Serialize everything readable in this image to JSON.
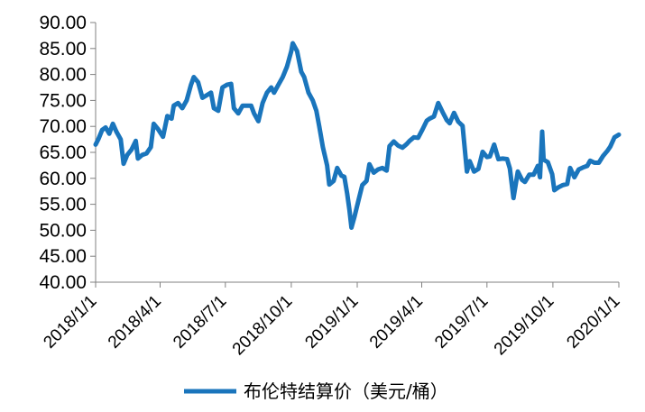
{
  "chart_data": {
    "type": "line",
    "title": "",
    "xlabel": "",
    "ylabel": "",
    "ylim": [
      40,
      90
    ],
    "y_ticks": [
      "40.00",
      "45.00",
      "50.00",
      "55.00",
      "60.00",
      "65.00",
      "70.00",
      "75.00",
      "80.00",
      "85.00",
      "90.00"
    ],
    "x_ticks": [
      "2018/1/1",
      "2018/4/1",
      "2018/7/1",
      "2018/10/1",
      "2019/1/1",
      "2019/4/1",
      "2019/7/1",
      "2019/10/1",
      "2020/1/1"
    ],
    "grid": false,
    "legend_position": "bottom",
    "series": [
      {
        "name": "布伦特结算价（美元/桶）",
        "color": "#1a75bc",
        "points": [
          [
            "2018-01-01",
            66.5
          ],
          [
            "2018-01-05",
            67.6
          ],
          [
            "2018-01-10",
            69.3
          ],
          [
            "2018-01-15",
            69.8
          ],
          [
            "2018-01-20",
            68.6
          ],
          [
            "2018-01-25",
            70.5
          ],
          [
            "2018-01-30",
            69.0
          ],
          [
            "2018-02-05",
            67.5
          ],
          [
            "2018-02-09",
            62.8
          ],
          [
            "2018-02-14",
            64.5
          ],
          [
            "2018-02-20",
            65.5
          ],
          [
            "2018-02-26",
            67.2
          ],
          [
            "2018-03-01",
            63.8
          ],
          [
            "2018-03-07",
            64.5
          ],
          [
            "2018-03-13",
            64.8
          ],
          [
            "2018-03-19",
            66.0
          ],
          [
            "2018-03-23",
            70.5
          ],
          [
            "2018-03-29",
            69.5
          ],
          [
            "2018-04-05",
            68.0
          ],
          [
            "2018-04-11",
            72.0
          ],
          [
            "2018-04-17",
            71.5
          ],
          [
            "2018-04-20",
            74.0
          ],
          [
            "2018-04-26",
            74.5
          ],
          [
            "2018-05-02",
            73.5
          ],
          [
            "2018-05-08",
            75.0
          ],
          [
            "2018-05-14",
            78.0
          ],
          [
            "2018-05-18",
            79.5
          ],
          [
            "2018-05-24",
            78.5
          ],
          [
            "2018-05-30",
            75.5
          ],
          [
            "2018-06-05",
            76.0
          ],
          [
            "2018-06-11",
            76.5
          ],
          [
            "2018-06-15",
            73.5
          ],
          [
            "2018-06-21",
            73.0
          ],
          [
            "2018-06-27",
            77.5
          ],
          [
            "2018-07-03",
            78.0
          ],
          [
            "2018-07-09",
            78.2
          ],
          [
            "2018-07-13",
            73.5
          ],
          [
            "2018-07-19",
            72.5
          ],
          [
            "2018-07-25",
            74.0
          ],
          [
            "2018-07-31",
            74.0
          ],
          [
            "2018-08-06",
            74.0
          ],
          [
            "2018-08-10",
            72.5
          ],
          [
            "2018-08-16",
            71.0
          ],
          [
            "2018-08-22",
            74.5
          ],
          [
            "2018-08-28",
            76.5
          ],
          [
            "2018-09-03",
            77.5
          ],
          [
            "2018-09-07",
            76.5
          ],
          [
            "2018-09-13",
            78.0
          ],
          [
            "2018-09-19",
            79.5
          ],
          [
            "2018-09-25",
            81.5
          ],
          [
            "2018-10-01",
            84.5
          ],
          [
            "2018-10-03",
            86.0
          ],
          [
            "2018-10-09",
            84.5
          ],
          [
            "2018-10-15",
            80.5
          ],
          [
            "2018-10-19",
            79.5
          ],
          [
            "2018-10-25",
            76.5
          ],
          [
            "2018-10-31",
            75.0
          ],
          [
            "2018-11-05",
            73.0
          ],
          [
            "2018-11-09",
            70.0
          ],
          [
            "2018-11-14",
            66.0
          ],
          [
            "2018-11-20",
            62.5
          ],
          [
            "2018-11-23",
            58.8
          ],
          [
            "2018-11-29",
            59.5
          ],
          [
            "2018-12-04",
            62.0
          ],
          [
            "2018-12-10",
            60.5
          ],
          [
            "2018-12-14",
            60.3
          ],
          [
            "2018-12-18",
            57.0
          ],
          [
            "2018-12-21",
            54.0
          ],
          [
            "2018-12-24",
            50.5
          ],
          [
            "2018-12-28",
            52.5
          ],
          [
            "2019-01-03",
            55.9
          ],
          [
            "2019-01-08",
            58.7
          ],
          [
            "2019-01-14",
            59.5
          ],
          [
            "2019-01-18",
            62.7
          ],
          [
            "2019-01-24",
            61.1
          ],
          [
            "2019-01-30",
            61.7
          ],
          [
            "2019-02-05",
            62.0
          ],
          [
            "2019-02-11",
            61.5
          ],
          [
            "2019-02-15",
            66.2
          ],
          [
            "2019-02-21",
            67.1
          ],
          [
            "2019-02-27",
            66.3
          ],
          [
            "2019-03-05",
            65.9
          ],
          [
            "2019-03-11",
            66.6
          ],
          [
            "2019-03-15",
            67.2
          ],
          [
            "2019-03-21",
            67.9
          ],
          [
            "2019-03-27",
            67.8
          ],
          [
            "2019-04-02",
            69.4
          ],
          [
            "2019-04-08",
            71.1
          ],
          [
            "2019-04-12",
            71.5
          ],
          [
            "2019-04-18",
            71.9
          ],
          [
            "2019-04-24",
            74.5
          ],
          [
            "2019-04-30",
            72.8
          ],
          [
            "2019-05-06",
            71.2
          ],
          [
            "2019-05-10",
            70.6
          ],
          [
            "2019-05-16",
            72.6
          ],
          [
            "2019-05-22",
            70.9
          ],
          [
            "2019-05-28",
            70.1
          ],
          [
            "2019-06-03",
            61.3
          ],
          [
            "2019-06-07",
            63.3
          ],
          [
            "2019-06-13",
            61.3
          ],
          [
            "2019-06-19",
            61.8
          ],
          [
            "2019-06-25",
            65.1
          ],
          [
            "2019-07-01",
            64.1
          ],
          [
            "2019-07-05",
            64.2
          ],
          [
            "2019-07-11",
            66.5
          ],
          [
            "2019-07-17",
            63.7
          ],
          [
            "2019-07-23",
            63.8
          ],
          [
            "2019-07-29",
            63.7
          ],
          [
            "2019-08-02",
            61.9
          ],
          [
            "2019-08-07",
            56.2
          ],
          [
            "2019-08-13",
            61.3
          ],
          [
            "2019-08-19",
            59.7
          ],
          [
            "2019-08-23",
            59.3
          ],
          [
            "2019-08-29",
            60.7
          ],
          [
            "2019-09-04",
            60.7
          ],
          [
            "2019-09-10",
            62.4
          ],
          [
            "2019-09-13",
            60.2
          ],
          [
            "2019-09-16",
            69.0
          ],
          [
            "2019-09-18",
            63.6
          ],
          [
            "2019-09-24",
            63.1
          ],
          [
            "2019-09-30",
            60.8
          ],
          [
            "2019-10-03",
            57.7
          ],
          [
            "2019-10-09",
            58.3
          ],
          [
            "2019-10-15",
            58.7
          ],
          [
            "2019-10-21",
            58.9
          ],
          [
            "2019-10-25",
            62.0
          ],
          [
            "2019-10-31",
            60.2
          ],
          [
            "2019-11-06",
            61.7
          ],
          [
            "2019-11-12",
            62.1
          ],
          [
            "2019-11-18",
            62.4
          ],
          [
            "2019-11-22",
            63.4
          ],
          [
            "2019-11-28",
            63.0
          ],
          [
            "2019-12-04",
            63.0
          ],
          [
            "2019-12-10",
            64.3
          ],
          [
            "2019-12-16",
            65.3
          ],
          [
            "2019-12-20",
            66.1
          ],
          [
            "2019-12-26",
            67.9
          ],
          [
            "2020-01-01",
            68.4
          ]
        ]
      }
    ]
  }
}
